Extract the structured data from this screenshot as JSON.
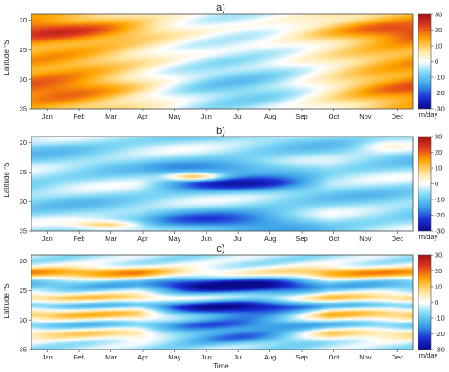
{
  "chart_data": [
    {
      "type": "heatmap",
      "title": "a)",
      "ylabel": "Latitude °S",
      "xlabel": "",
      "x_categories": [
        "Jan",
        "Feb",
        "Mar",
        "Apr",
        "May",
        "Jun",
        "Jul",
        "Aug",
        "Sep",
        "Oct",
        "Nov",
        "Dec"
      ],
      "y_ticks": [
        20,
        25,
        30,
        35
      ],
      "ylim": [
        35,
        19
      ],
      "value_range": [
        -30,
        30
      ],
      "colorbar": {
        "ticks": [
          30,
          20,
          10,
          0,
          -10,
          -20,
          -30
        ],
        "unit": "m/day"
      },
      "pattern": "warm (10 to 28) across most latitudes in Jan–Mar and Sep–Dec, strongest near 22°S and 32°S; near zero to slightly negative (0 to -8) in Apr–Aug, weakest near 30–35°S"
    },
    {
      "type": "heatmap",
      "title": "b)",
      "ylabel": "Latitude °S",
      "xlabel": "",
      "x_categories": [
        "Jan",
        "Feb",
        "Mar",
        "Apr",
        "May",
        "Jun",
        "Jul",
        "Aug",
        "Sep",
        "Oct",
        "Nov",
        "Dec"
      ],
      "y_ticks": [
        20,
        25,
        30,
        35
      ],
      "ylim": [
        35,
        19
      ],
      "value_range": [
        -30,
        30
      ],
      "colorbar": {
        "ticks": [
          30,
          20,
          10,
          0,
          -10,
          -20,
          -30
        ],
        "unit": "m/day"
      },
      "pattern": "mostly weak negative (-5 to -12) with zonal bands; strongest negatives (-20 to -25) near 27°S and 33°S during May–Aug; small positive streaks near 26°S in Jun and 34°S in Mar"
    },
    {
      "type": "heatmap",
      "title": "c)",
      "ylabel": "Latitude °S",
      "xlabel": "Time",
      "x_categories": [
        "Jan",
        "Feb",
        "Mar",
        "Apr",
        "May",
        "Jun",
        "Jul",
        "Aug",
        "Sep",
        "Oct",
        "Nov",
        "Dec"
      ],
      "y_ticks": [
        20,
        25,
        30,
        35
      ],
      "ylim": [
        35,
        19
      ],
      "value_range": [
        -30,
        30
      ],
      "colorbar": {
        "ticks": [
          30,
          20,
          10,
          0,
          -10,
          -20,
          -30
        ],
        "unit": "m/day"
      },
      "pattern": "alternating positive bands (near 22°S, 26°S, 29°S, 32°S, up to +25) and negative bands; strong negatives (-20 to -28) in May–Aug between 24°S and 33°S"
    }
  ]
}
